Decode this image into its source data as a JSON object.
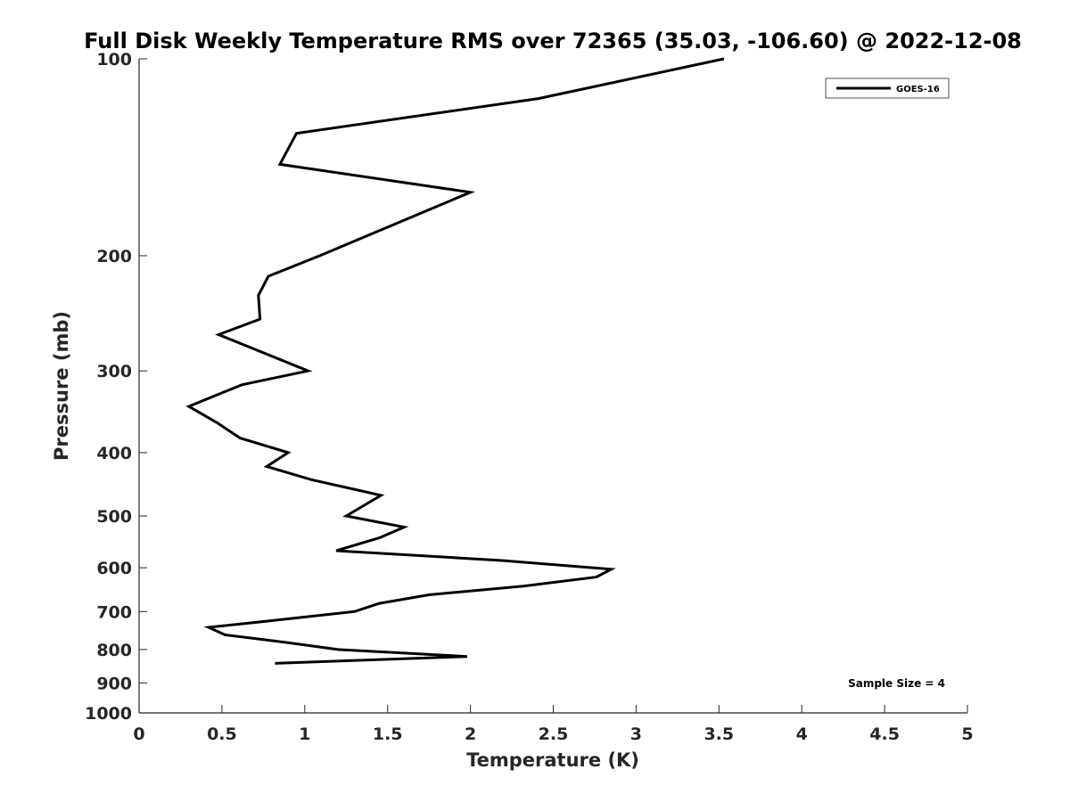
{
  "chart_data": {
    "type": "line",
    "title": "Full Disk Weekly Temperature RMS over 72365 (35.03, -106.60) @ 2022-12-08",
    "xlabel": "Temperature (K)",
    "ylabel": "Pressure (mb)",
    "xlim": [
      0,
      5
    ],
    "ylim": [
      100,
      1000
    ],
    "y_scale": "log",
    "y_reversed": true,
    "xticks": [
      0,
      0.5,
      1,
      1.5,
      2,
      2.5,
      3,
      3.5,
      4,
      4.5,
      5
    ],
    "xtick_labels": [
      "0",
      "0.5",
      "1",
      "1.5",
      "2",
      "2.5",
      "3",
      "3.5",
      "4",
      "4.5",
      "5"
    ],
    "yticks": [
      100,
      200,
      300,
      400,
      500,
      600,
      700,
      800,
      900,
      1000
    ],
    "ytick_labels": [
      "100",
      "200",
      "300",
      "400",
      "500",
      "600",
      "700",
      "800",
      "900",
      "1000"
    ],
    "grid": false,
    "legend_position": "top-right",
    "series": [
      {
        "name": "GOES-16",
        "color": "#000000",
        "points": [
          {
            "x": 3.53,
            "y": 100
          },
          {
            "x": 2.41,
            "y": 115
          },
          {
            "x": 0.95,
            "y": 130
          },
          {
            "x": 0.85,
            "y": 145
          },
          {
            "x": 2.0,
            "y": 160
          },
          {
            "x": 1.09,
            "y": 200
          },
          {
            "x": 0.78,
            "y": 215
          },
          {
            "x": 0.72,
            "y": 230
          },
          {
            "x": 0.73,
            "y": 250
          },
          {
            "x": 0.48,
            "y": 264
          },
          {
            "x": 1.02,
            "y": 300
          },
          {
            "x": 0.62,
            "y": 315
          },
          {
            "x": 0.3,
            "y": 340
          },
          {
            "x": 0.47,
            "y": 360
          },
          {
            "x": 0.61,
            "y": 380
          },
          {
            "x": 0.9,
            "y": 400
          },
          {
            "x": 0.77,
            "y": 420
          },
          {
            "x": 1.04,
            "y": 440
          },
          {
            "x": 1.46,
            "y": 465
          },
          {
            "x": 1.25,
            "y": 500
          },
          {
            "x": 1.6,
            "y": 520
          },
          {
            "x": 1.45,
            "y": 540
          },
          {
            "x": 1.19,
            "y": 565
          },
          {
            "x": 2.2,
            "y": 585
          },
          {
            "x": 2.85,
            "y": 603
          },
          {
            "x": 2.76,
            "y": 620
          },
          {
            "x": 2.32,
            "y": 640
          },
          {
            "x": 1.75,
            "y": 660
          },
          {
            "x": 1.45,
            "y": 680
          },
          {
            "x": 1.3,
            "y": 700
          },
          {
            "x": 0.75,
            "y": 725
          },
          {
            "x": 0.42,
            "y": 740
          },
          {
            "x": 0.52,
            "y": 760
          },
          {
            "x": 0.88,
            "y": 780
          },
          {
            "x": 1.2,
            "y": 800
          },
          {
            "x": 1.98,
            "y": 820
          },
          {
            "x": 0.82,
            "y": 840
          }
        ]
      }
    ],
    "annotation": "Sample Size = 4"
  }
}
